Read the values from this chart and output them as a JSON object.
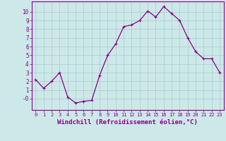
{
  "x": [
    0,
    1,
    2,
    3,
    4,
    5,
    6,
    7,
    8,
    9,
    10,
    11,
    12,
    13,
    14,
    15,
    16,
    17,
    18,
    19,
    20,
    21,
    22,
    23
  ],
  "y": [
    2.2,
    1.2,
    2.0,
    3.0,
    0.2,
    -0.5,
    -0.3,
    -0.2,
    2.7,
    5.0,
    6.3,
    8.3,
    8.5,
    9.0,
    10.1,
    9.4,
    10.6,
    9.8,
    9.0,
    7.0,
    5.4,
    4.6,
    4.6,
    3.0
  ],
  "line_color": "#880088",
  "marker": "+",
  "marker_size": 3,
  "marker_lw": 0.8,
  "background_color": "#cce8e8",
  "grid_color": "#aacccc",
  "xlabel": "Windchill (Refroidissement éolien,°C)",
  "xlabel_fontsize": 6.5,
  "xtick_fontsize": 5.0,
  "ytick_fontsize": 5.5,
  "xlim": [
    -0.5,
    23.5
  ],
  "ylim": [
    -1.3,
    11.2
  ],
  "yticks": [
    0,
    1,
    2,
    3,
    4,
    5,
    6,
    7,
    8,
    9,
    10
  ],
  "ytick_labels": [
    "-0",
    "1",
    "2",
    "3",
    "4",
    "5",
    "6",
    "7",
    "8",
    "9",
    "10"
  ],
  "title_color": "#880088",
  "spine_color": "#880088",
  "line_width": 0.9
}
